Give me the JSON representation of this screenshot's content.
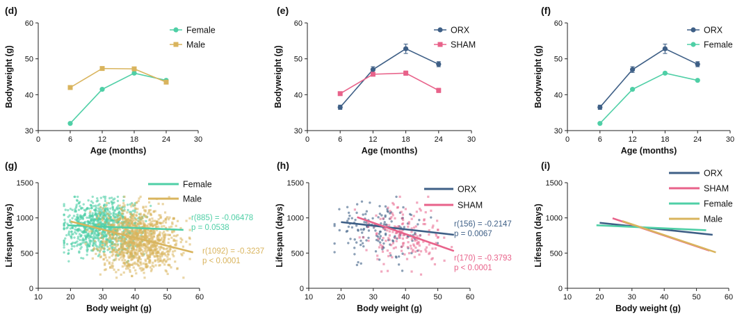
{
  "colors": {
    "female": "#4fcfa6",
    "male": "#d9b45d",
    "orx": "#3e5f86",
    "sham": "#e8628a",
    "axis": "#222222"
  },
  "chart_data": [
    {
      "panel": "(d)",
      "type": "line",
      "xlabel": "Age (months)",
      "ylabel": "Bodyweight (g)",
      "xlim": [
        0,
        30
      ],
      "ylim": [
        30,
        60
      ],
      "xticks": [
        0,
        6,
        12,
        18,
        24,
        30
      ],
      "yticks": [
        30,
        40,
        50,
        60
      ],
      "series": [
        {
          "name": "Female",
          "color": "female",
          "marker": "circle",
          "x": [
            6,
            12,
            18,
            24
          ],
          "y": [
            32,
            41.5,
            46,
            44
          ]
        },
        {
          "name": "Male",
          "color": "male",
          "marker": "square",
          "x": [
            6,
            12,
            18,
            24
          ],
          "y": [
            42,
            47.3,
            47.2,
            43.5
          ]
        }
      ]
    },
    {
      "panel": "(e)",
      "type": "line",
      "xlabel": "Age (months)",
      "ylabel": "Bodyweight (g)",
      "xlim": [
        0,
        30
      ],
      "ylim": [
        30,
        60
      ],
      "xticks": [
        0,
        6,
        12,
        18,
        24,
        30
      ],
      "yticks": [
        30,
        40,
        50,
        60
      ],
      "series": [
        {
          "name": "ORX",
          "color": "orx",
          "marker": "circle",
          "x": [
            6,
            12,
            18,
            24
          ],
          "y": [
            36.5,
            47,
            52.8,
            48.5
          ],
          "err": [
            0.6,
            0.8,
            1.3,
            0.7
          ]
        },
        {
          "name": "SHAM",
          "color": "sham",
          "marker": "square",
          "x": [
            6,
            12,
            18,
            24
          ],
          "y": [
            40.3,
            45.7,
            46,
            41.2
          ],
          "err": [
            0.3,
            0.4,
            0.6,
            0.6
          ]
        }
      ]
    },
    {
      "panel": "(f)",
      "type": "line",
      "xlabel": "Age (months)",
      "ylabel": "Bodyweight (g)",
      "xlim": [
        0,
        30
      ],
      "ylim": [
        30,
        60
      ],
      "xticks": [
        0,
        6,
        12,
        18,
        24,
        30
      ],
      "yticks": [
        30,
        40,
        50,
        60
      ],
      "series": [
        {
          "name": "ORX",
          "color": "orx",
          "marker": "circle",
          "x": [
            6,
            12,
            18,
            24
          ],
          "y": [
            36.5,
            47,
            52.8,
            48.5
          ],
          "err": [
            0.6,
            0.8,
            1.3,
            0.7
          ]
        },
        {
          "name": "Female",
          "color": "female",
          "marker": "circle",
          "x": [
            6,
            12,
            18,
            24
          ],
          "y": [
            32,
            41.5,
            46,
            44
          ]
        }
      ]
    },
    {
      "panel": "(g)",
      "type": "scatter",
      "xlabel": "Body weight (g)",
      "ylabel": "Lifespan (days)",
      "xlim": [
        10,
        60
      ],
      "ylim": [
        0,
        1500
      ],
      "xticks": [
        10,
        20,
        30,
        40,
        50,
        60
      ],
      "yticks": [
        0,
        500,
        1000,
        1500
      ],
      "series": [
        {
          "name": "Female",
          "color": "female",
          "n_points": 887,
          "x_center": 30,
          "x_spread": 6,
          "y_center": 870,
          "y_spread": 190,
          "fit_x": [
            19,
            55
          ],
          "fit_y": [
            895,
            830
          ]
        },
        {
          "name": "Male",
          "color": "male",
          "n_points": 1094,
          "x_center": 41,
          "x_spread": 6,
          "y_center": 700,
          "y_spread": 230,
          "fit_x": [
            20,
            58
          ],
          "fit_y": [
            950,
            510
          ]
        }
      ],
      "annotations": [
        {
          "series": "Female",
          "lines": [
            "r(885) = -0.06478",
            "p = 0.0538"
          ]
        },
        {
          "series": "Male",
          "lines": [
            "r(1092) = -0.3237",
            "p < 0.0001"
          ]
        }
      ]
    },
    {
      "panel": "(h)",
      "type": "scatter",
      "xlabel": "Body weight (g)",
      "ylabel": "Lifespan (days)",
      "xlim": [
        10,
        60
      ],
      "ylim": [
        0,
        1500
      ],
      "xticks": [
        10,
        20,
        30,
        40,
        50,
        60
      ],
      "yticks": [
        0,
        500,
        1000,
        1500
      ],
      "series": [
        {
          "name": "ORX",
          "color": "orx",
          "n_points": 158,
          "x_center": 33,
          "x_spread": 7,
          "y_center": 830,
          "y_spread": 210,
          "fit_x": [
            20,
            55
          ],
          "fit_y": [
            940,
            760
          ]
        },
        {
          "name": "SHAM",
          "color": "sham",
          "n_points": 172,
          "x_center": 40,
          "x_spread": 6,
          "y_center": 740,
          "y_spread": 230,
          "fit_x": [
            25,
            55
          ],
          "fit_y": [
            1010,
            530
          ]
        }
      ],
      "annotations": [
        {
          "series": "ORX",
          "lines": [
            "r(156) = -0.2147",
            "p = 0.0067"
          ]
        },
        {
          "series": "SHAM",
          "lines": [
            "r(170) = -0.3793",
            "p < 0.0001"
          ]
        }
      ]
    },
    {
      "panel": "(i)",
      "type": "line",
      "xlabel": "Body weight (g)",
      "ylabel": "Lifespan (days)",
      "xlim": [
        10,
        60
      ],
      "ylim": [
        0,
        1500
      ],
      "xticks": [
        10,
        20,
        30,
        40,
        50,
        60
      ],
      "yticks": [
        0,
        500,
        1000,
        1500
      ],
      "series": [
        {
          "name": "ORX",
          "color": "orx",
          "x": [
            20,
            55
          ],
          "y": [
            930,
            760
          ]
        },
        {
          "name": "SHAM",
          "color": "sham",
          "x": [
            24,
            54
          ],
          "y": [
            995,
            535
          ]
        },
        {
          "name": "Female",
          "color": "female",
          "x": [
            19,
            53
          ],
          "y": [
            895,
            825
          ]
        },
        {
          "name": "Male",
          "color": "male",
          "x": [
            27,
            56
          ],
          "y": [
            955,
            510
          ]
        }
      ]
    }
  ]
}
